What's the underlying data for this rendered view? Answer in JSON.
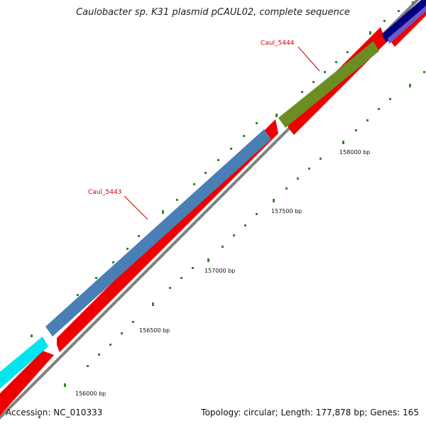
{
  "title": "Caulobacter sp. K31 plasmid pCAUL02, complete sequence",
  "footer": {
    "accession": "Accession: NC_010333",
    "topology": "Topology: circular; Length: 177,878 bp; Genes: 165"
  },
  "colors": {
    "cds_track": "#ee0000",
    "backbone": "#808080",
    "tick": "#2e8b20",
    "label": "#cc0000"
  },
  "ticks": [
    {
      "label": "156000 bp"
    },
    {
      "label": "156500 bp"
    },
    {
      "label": "157000 bp"
    },
    {
      "label": "157500 bp"
    },
    {
      "label": "158000 bp"
    }
  ],
  "genes": [
    {
      "label": "Caul_5443",
      "color": "#4a7fb5"
    },
    {
      "label": "Caul_5444",
      "color": "#6b8e23"
    }
  ],
  "other_features": [
    {
      "color": "#00e5ee"
    },
    {
      "color": "#000080"
    }
  ]
}
